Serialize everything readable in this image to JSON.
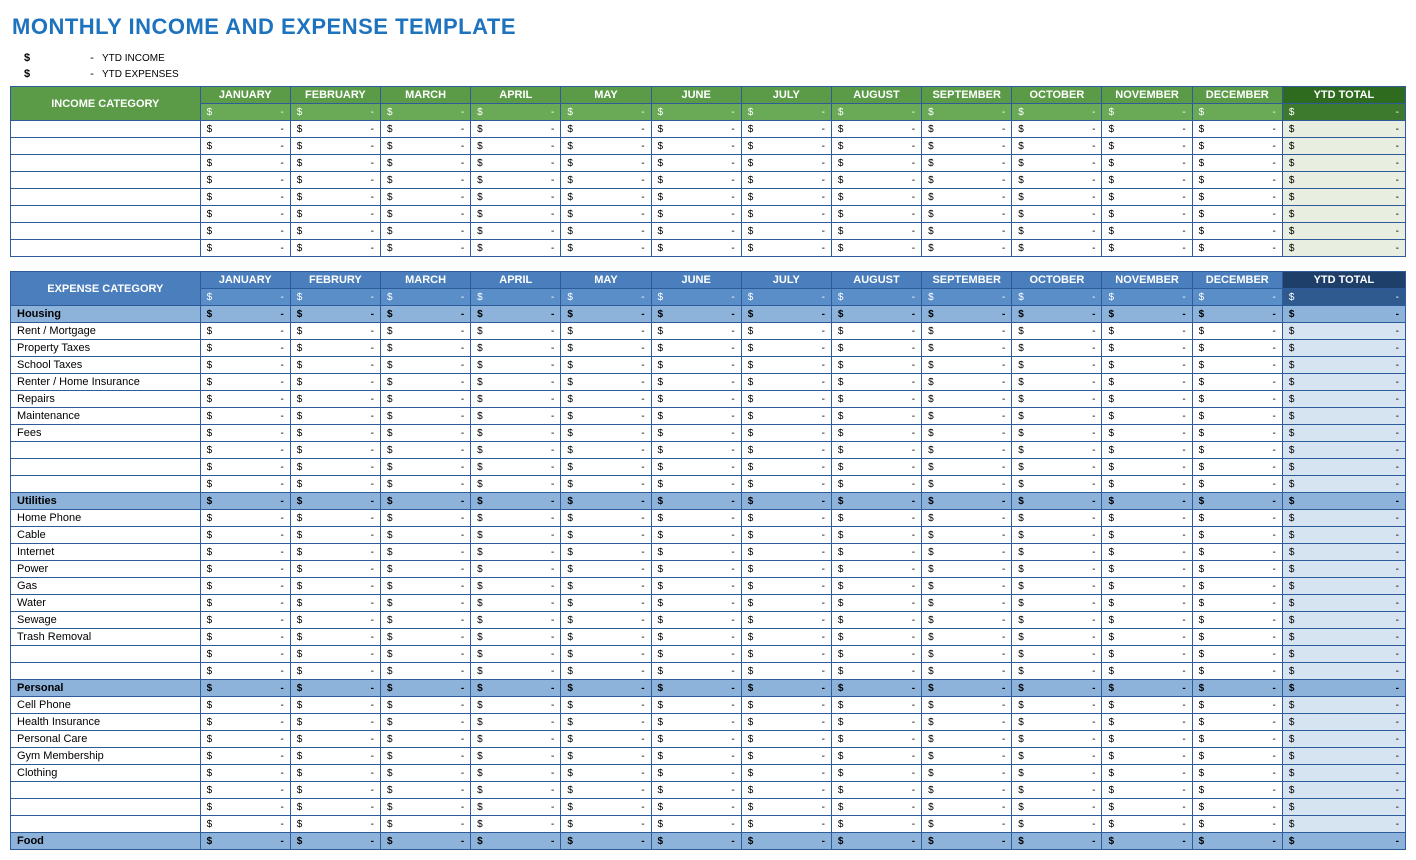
{
  "title": "MONTHLY INCOME AND EXPENSE TEMPLATE",
  "summary": {
    "income_symbol": "$",
    "income_dash": "-",
    "income_label": "YTD INCOME",
    "expense_symbol": "$",
    "expense_dash": "-",
    "expense_label": "YTD EXPENSES"
  },
  "months": [
    "JANUARY",
    "FEBRUARY",
    "MARCH",
    "APRIL",
    "MAY",
    "JUNE",
    "JULY",
    "AUGUST",
    "SEPTEMBER",
    "OCTOBER",
    "NOVEMBER",
    "DECEMBER"
  ],
  "months_expense": [
    "JANUARY",
    "FEBRURY",
    "MARCH",
    "APRIL",
    "MAY",
    "JUNE",
    "JULY",
    "AUGUST",
    "SEPTEMBER",
    "OCTOBER",
    "NOVEMBER",
    "DECEMBER"
  ],
  "ytd_label": "YTD TOTAL",
  "income_category_label": "INCOME CATEGORY",
  "expense_category_label": "EXPENSE CATEGORY",
  "currency_symbol": "$",
  "empty_value": "-",
  "income_blank_row_count": 8,
  "expense_groups": [
    {
      "label": "Housing",
      "items": [
        "Rent / Mortgage",
        "Property Taxes",
        "School Taxes",
        "Renter / Home Insurance",
        "Repairs",
        "Maintenance",
        "Fees",
        "",
        "",
        ""
      ]
    },
    {
      "label": "Utilities",
      "items": [
        "Home Phone",
        "Cable",
        "Internet",
        "Power",
        "Gas",
        "Water",
        "Sewage",
        "Trash Removal",
        "",
        ""
      ]
    },
    {
      "label": "Personal",
      "items": [
        "Cell Phone",
        "Health Insurance",
        "Personal Care",
        "Gym Membership",
        "Clothing",
        "",
        "",
        ""
      ]
    },
    {
      "label": "Food",
      "items": []
    }
  ],
  "colors": {
    "title": "#1e73be",
    "border": "#2e5c9a",
    "income_header_bg": "#5b9b47",
    "income_header_fg": "#ffffff",
    "income_ytd_header_bg": "#2e6b1f",
    "income_sub_bg": "#6aaa56",
    "income_sub_ytd_bg": "#3d7a2e",
    "income_ytd_cell_bg": "#e8efe0",
    "expense_header_bg": "#4a7ebc",
    "expense_header_fg": "#ffffff",
    "expense_ytd_header_bg": "#1f3f6b",
    "expense_sub_bg": "#5a8ec8",
    "expense_sub_ytd_bg": "#2f5a8f",
    "expense_group_bg": "#8db3db",
    "expense_ytd_cell_bg": "#d6e3f0",
    "white": "#ffffff"
  }
}
